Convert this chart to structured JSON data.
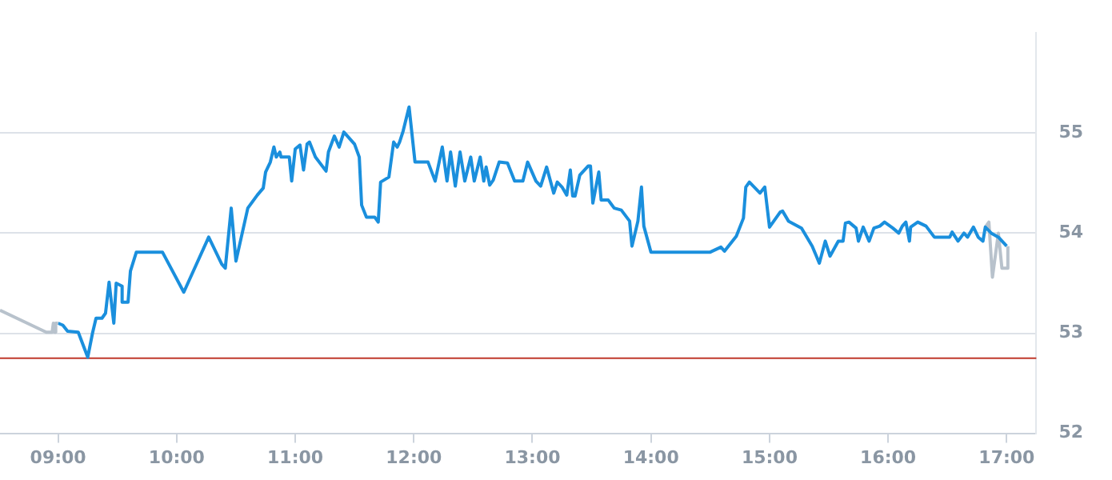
{
  "chart_data": {
    "type": "line",
    "xlim": [
      8.51,
      17.25
    ],
    "xticks": [
      {
        "value": 9,
        "label": "09:00"
      },
      {
        "value": 10,
        "label": "10:00"
      },
      {
        "value": 11,
        "label": "11:00"
      },
      {
        "value": 12,
        "label": "12:00"
      },
      {
        "value": 13,
        "label": "13:00"
      },
      {
        "value": 14,
        "label": "14:00"
      },
      {
        "value": 15,
        "label": "15:00"
      },
      {
        "value": 16,
        "label": "16:00"
      },
      {
        "value": 17,
        "label": "17:00"
      }
    ],
    "ylim": [
      52,
      56
    ],
    "yticks": [
      52,
      53,
      54,
      55
    ],
    "grid": "y",
    "legend": false,
    "marker": "none",
    "line_style": "solid",
    "ref_lines": [
      {
        "axis": "y",
        "value": 52.75,
        "color": "#c0392b"
      }
    ],
    "series": [
      {
        "color": "#b8c2cc",
        "x": [
          8.51,
          8.9,
          8.95,
          8.96,
          8.97,
          8.98,
          9.0
        ],
        "values": [
          53.23,
          53.01,
          53.01,
          53.1,
          53.01,
          53.1,
          53.1
        ]
      },
      {
        "color": "#1a8fdd",
        "x": [
          9.0,
          9.04,
          9.08,
          9.17,
          9.25,
          9.29,
          9.32,
          9.37,
          9.4,
          9.43,
          9.47,
          9.49,
          9.54,
          9.54,
          9.59,
          9.61,
          9.66,
          9.88,
          10.06,
          10.27,
          10.38,
          10.41,
          10.46,
          10.5,
          10.6,
          10.68,
          10.73,
          10.75,
          10.79,
          10.82,
          10.84,
          10.87,
          10.88,
          10.95,
          10.97,
          11.0,
          11.04,
          11.07,
          11.1,
          11.12,
          11.17,
          11.26,
          11.28,
          11.33,
          11.37,
          11.41,
          11.5,
          11.54,
          11.56,
          11.6,
          11.67,
          11.7,
          11.72,
          11.79,
          11.83,
          11.86,
          11.88,
          11.91,
          11.96,
          12.01,
          12.12,
          12.18,
          12.24,
          12.28,
          12.31,
          12.35,
          12.39,
          12.43,
          12.48,
          12.51,
          12.56,
          12.59,
          12.61,
          12.64,
          12.67,
          12.72,
          12.79,
          12.85,
          12.92,
          12.96,
          13.03,
          13.07,
          13.12,
          13.18,
          13.21,
          13.25,
          13.29,
          13.32,
          13.34,
          13.36,
          13.4,
          13.47,
          13.49,
          13.51,
          13.56,
          13.58,
          13.64,
          13.69,
          13.75,
          13.82,
          13.84,
          13.89,
          13.92,
          13.94,
          14.0,
          14.5,
          14.59,
          14.62,
          14.72,
          14.78,
          14.8,
          14.83,
          14.92,
          14.96,
          15.0,
          15.09,
          15.11,
          15.16,
          15.27,
          15.36,
          15.42,
          15.47,
          15.51,
          15.58,
          15.62,
          15.64,
          15.67,
          15.73,
          15.75,
          15.79,
          15.84,
          15.88,
          15.93,
          15.97,
          16.04,
          16.09,
          16.12,
          16.15,
          16.18,
          16.19,
          16.25,
          16.32,
          16.39,
          16.52,
          16.54,
          16.59,
          16.64,
          16.67,
          16.72,
          16.76,
          16.8,
          16.82,
          16.87,
          16.93,
          17.0
        ],
        "values": [
          53.1,
          53.08,
          53.02,
          53.01,
          52.76,
          53.0,
          53.15,
          53.15,
          53.2,
          53.51,
          53.1,
          53.5,
          53.47,
          53.31,
          53.31,
          53.62,
          53.81,
          53.81,
          53.41,
          53.96,
          53.69,
          53.65,
          54.25,
          53.72,
          54.25,
          54.38,
          54.45,
          54.61,
          54.71,
          54.86,
          54.76,
          54.81,
          54.76,
          54.76,
          54.52,
          54.84,
          54.88,
          54.63,
          54.89,
          54.91,
          54.76,
          54.62,
          54.81,
          54.97,
          54.86,
          55.01,
          54.89,
          54.76,
          54.28,
          54.16,
          54.16,
          54.11,
          54.51,
          54.56,
          54.91,
          54.86,
          54.91,
          55.02,
          55.26,
          54.71,
          54.71,
          54.52,
          54.86,
          54.52,
          54.81,
          54.47,
          54.81,
          54.52,
          54.76,
          54.52,
          54.76,
          54.52,
          54.66,
          54.48,
          54.53,
          54.71,
          54.7,
          54.52,
          54.52,
          54.71,
          54.52,
          54.47,
          54.66,
          54.4,
          54.51,
          54.46,
          54.38,
          54.63,
          54.37,
          54.37,
          54.58,
          54.67,
          54.67,
          54.3,
          54.61,
          54.33,
          54.33,
          54.25,
          54.23,
          54.12,
          53.87,
          54.12,
          54.46,
          54.07,
          53.81,
          53.81,
          53.86,
          53.82,
          53.97,
          54.15,
          54.46,
          54.51,
          54.4,
          54.46,
          54.06,
          54.21,
          54.22,
          54.12,
          54.05,
          53.87,
          53.7,
          53.92,
          53.77,
          53.92,
          53.92,
          54.1,
          54.11,
          54.05,
          53.92,
          54.06,
          53.92,
          54.05,
          54.07,
          54.11,
          54.05,
          54.0,
          54.07,
          54.11,
          53.92,
          54.06,
          54.11,
          54.07,
          53.96,
          53.96,
          54.01,
          53.92,
          54.0,
          53.96,
          54.06,
          53.96,
          53.92,
          54.06,
          54.0,
          53.96,
          53.87
        ]
      },
      {
        "color": "#b8c2cc",
        "x": [
          16.82,
          16.85,
          16.88,
          16.93,
          16.96,
          17.0,
          17.01
        ],
        "values": [
          54.06,
          54.11,
          53.56,
          54.0,
          53.65,
          53.65,
          53.87
        ]
      }
    ]
  }
}
